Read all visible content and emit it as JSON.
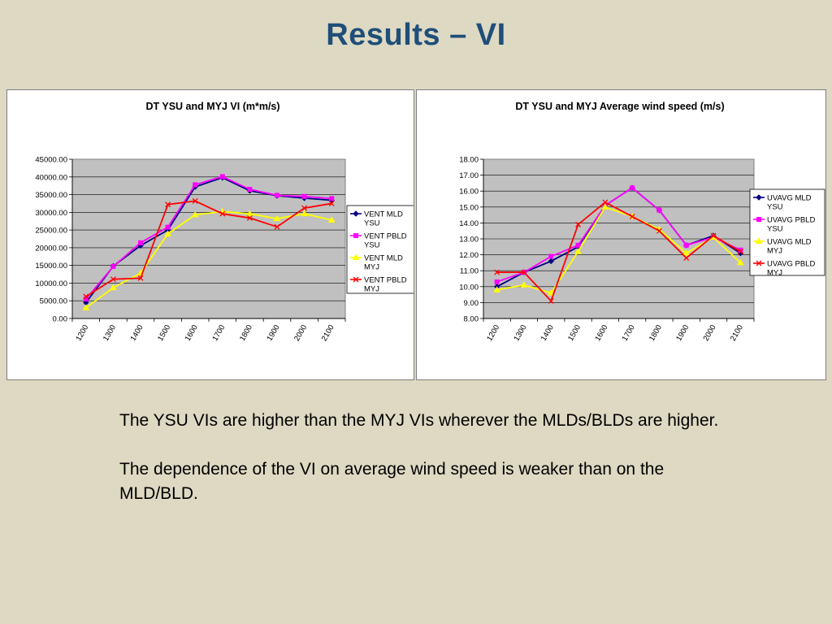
{
  "slide": {
    "title": "Results – VI",
    "paragraphs": [
      "The YSU VIs are higher than the MYJ VIs wherever the MLDs/BLDs are higher.",
      "The dependence of the VI on average wind speed is weaker than on the MLD/BLD."
    ]
  },
  "chart_data": [
    {
      "type": "line",
      "title": "DT YSU and MYJ VI (m*m/s)",
      "categories": [
        "1200",
        "1300",
        "1400",
        "1500",
        "1600",
        "1700",
        "1800",
        "1900",
        "2000",
        "2100"
      ],
      "ylim": [
        0,
        45000
      ],
      "ystep": 5000,
      "ydecimals": 2,
      "grid": true,
      "legend_position": "right",
      "plot_background": "#c0c0c0",
      "series": [
        {
          "name": "VENT MLD YSU",
          "color": "#000080",
          "marker": "diamond",
          "values": [
            4500,
            14800,
            20600,
            25000,
            37200,
            39800,
            36100,
            34700,
            34000,
            33400
          ]
        },
        {
          "name": "VENT PBLD YSU",
          "color": "#ff00ff",
          "marker": "square",
          "values": [
            5500,
            14700,
            21400,
            25800,
            37800,
            40100,
            36500,
            34800,
            34500,
            33900
          ]
        },
        {
          "name": "VENT MLD MYJ",
          "color": "#ffff00",
          "marker": "triangle",
          "values": [
            3000,
            8700,
            12800,
            23900,
            29300,
            30200,
            29600,
            28200,
            29600,
            27800
          ]
        },
        {
          "name": "VENT PBLD MYJ",
          "color": "#ff0000",
          "marker": "x",
          "values": [
            6200,
            11100,
            11400,
            32200,
            33200,
            29600,
            28400,
            25900,
            31200,
            32500
          ]
        }
      ]
    },
    {
      "type": "line",
      "title": "DT YSU and MYJ Average wind speed (m/s)",
      "categories": [
        "1200",
        "1300",
        "1400",
        "1500",
        "1600",
        "1700",
        "1800",
        "1900",
        "2000",
        "2100"
      ],
      "ylim": [
        8,
        18
      ],
      "ystep": 1,
      "ydecimals": 2,
      "grid": true,
      "legend_position": "right",
      "plot_background": "#c0c0c0",
      "series": [
        {
          "name": "UVAVG MLD YSU",
          "color": "#000080",
          "marker": "diamond",
          "values": [
            10.0,
            10.9,
            11.6,
            12.5,
            15.1,
            16.2,
            14.8,
            12.6,
            13.2,
            12.1
          ]
        },
        {
          "name": "UVAVG PBLD YSU",
          "color": "#ff00ff",
          "marker": "square",
          "values": [
            10.3,
            10.9,
            11.9,
            12.6,
            15.1,
            16.2,
            14.8,
            12.6,
            13.1,
            12.3
          ]
        },
        {
          "name": "UVAVG MLD MYJ",
          "color": "#ffff00",
          "marker": "triangle",
          "values": [
            9.8,
            10.1,
            9.6,
            12.2,
            15.0,
            14.4,
            13.6,
            12.1,
            13.1,
            11.5
          ]
        },
        {
          "name": "UVAVG PBLD MYJ",
          "color": "#ff0000",
          "marker": "x",
          "values": [
            10.9,
            10.9,
            9.1,
            13.9,
            15.3,
            14.4,
            13.5,
            11.8,
            13.2,
            12.2
          ]
        }
      ]
    }
  ]
}
